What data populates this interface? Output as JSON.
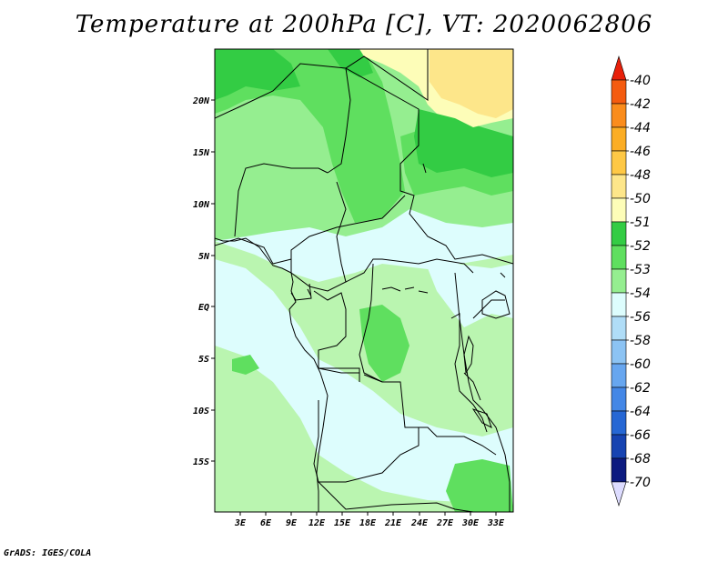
{
  "title": "Temperature at 200hPa [C], VT: 2020062806",
  "credit": "GrADS: IGES/COLA",
  "map": {
    "lon_labels": [
      "3E",
      "6E",
      "9E",
      "12E",
      "15E",
      "18E",
      "21E",
      "24E",
      "27E",
      "30E",
      "33E"
    ],
    "lat_labels": [
      "20N",
      "15N",
      "10N",
      "5N",
      "EQ",
      "5S",
      "10S",
      "15S"
    ]
  },
  "colorbar": {
    "labels": [
      "-40",
      "-42",
      "-44",
      "-46",
      "-48",
      "-50",
      "-51",
      "-52",
      "-53",
      "-54",
      "-56",
      "-58",
      "-60",
      "-62",
      "-64",
      "-66",
      "-68",
      "-70"
    ],
    "colors": [
      "#e8200a",
      "#f45b0f",
      "#fa8c1c",
      "#fbad24",
      "#fec845",
      "#fde68a",
      "#fdfdb8",
      "#33cc44",
      "#5fdf5f",
      "#95ee90",
      "#ddfdfd",
      "#b0ddf7",
      "#8cc3f3",
      "#67a6ef",
      "#4487e6",
      "#2667d4",
      "#1643b1",
      "#0d1b80",
      "#dddcff"
    ]
  },
  "colors": {
    "pale_cyan": "#ddfdfd",
    "light_green": "#baf5b0",
    "green": "#95ee90",
    "mid_green": "#5fdf5f",
    "dark_green": "#33cc44",
    "pale_yellow": "#fdfdb8",
    "yellow": "#fde68a"
  }
}
